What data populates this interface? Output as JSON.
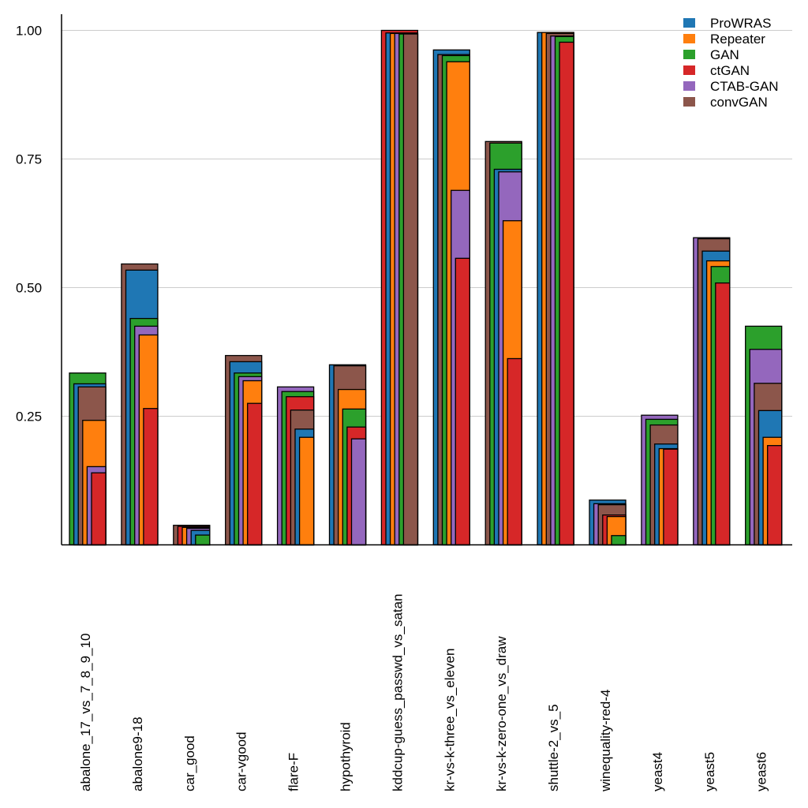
{
  "chart_data": {
    "type": "bar",
    "title": "",
    "xlabel": "",
    "ylabel": "",
    "ylim": [
      0,
      1.0
    ],
    "yticks": [
      "0.25",
      "0.50",
      "0.75",
      "1.00"
    ],
    "ytick_values": [
      0.25,
      0.5,
      0.75,
      1.0
    ],
    "grid": true,
    "legend_position": "top-right",
    "style": "overlapping nested bars, sorted tallest-first per category",
    "categories": [
      "abalone_17_vs_7_8_9_10",
      "abalone9-18",
      "car_good",
      "car-vgood",
      "flare-F",
      "hypothyroid",
      "kddcup-guess_passwd_vs_satan",
      "kr-vs-k-three_vs_eleven",
      "kr-vs-k-zero-one_vs_draw",
      "shuttle-2_vs_5",
      "winequality-red-4",
      "yeast4",
      "yeast5",
      "yeast6"
    ],
    "series": [
      {
        "name": "ProWRAS",
        "color": "#1f77b4",
        "values": [
          0.313,
          0.534,
          0.028,
          0.356,
          0.225,
          0.35,
          0.995,
          0.962,
          0.73,
          0.996,
          0.087,
          0.196,
          0.571,
          0.261
        ]
      },
      {
        "name": "Repeater",
        "color": "#ff7f0e",
        "values": [
          0.242,
          0.408,
          0.034,
          0.319,
          0.209,
          0.302,
          0.994,
          0.939,
          0.63,
          0.996,
          0.055,
          0.187,
          0.552,
          0.209
        ]
      },
      {
        "name": "GAN",
        "color": "#2ca02c",
        "values": [
          0.334,
          0.44,
          0.019,
          0.334,
          0.298,
          0.264,
          0.993,
          0.951,
          0.781,
          0.988,
          0.018,
          0.244,
          0.541,
          0.425
        ]
      },
      {
        "name": "ctGAN",
        "color": "#d62728",
        "values": [
          0.14,
          0.265,
          0.036,
          0.275,
          0.288,
          0.229,
          1.0,
          0.557,
          0.362,
          0.977,
          0.058,
          0.186,
          0.509,
          0.193
        ]
      },
      {
        "name": "CTAB-GAN",
        "color": "#9467bd",
        "values": [
          0.152,
          0.425,
          0.032,
          0.327,
          0.307,
          0.206,
          0.994,
          0.689,
          0.725,
          0.989,
          0.08,
          0.252,
          0.597,
          0.38
        ]
      },
      {
        "name": "convGAN",
        "color": "#8c564b",
        "values": [
          0.307,
          0.546,
          0.038,
          0.368,
          0.262,
          0.348,
          0.993,
          0.953,
          0.784,
          0.994,
          0.078,
          0.233,
          0.595,
          0.314
        ]
      }
    ]
  }
}
